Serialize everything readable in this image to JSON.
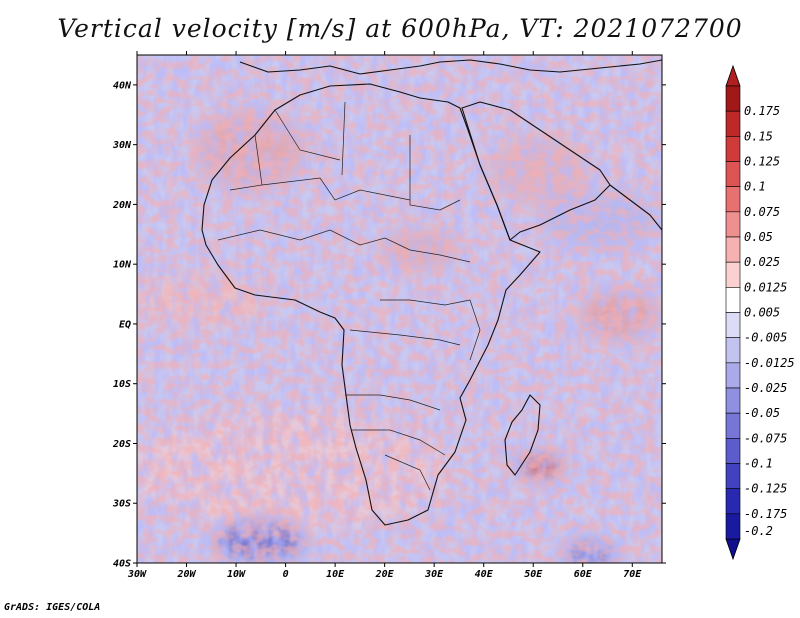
{
  "title": "Vertical velocity [m/s] at 600hPa, VT: 2021072700",
  "credit": "GrADS: IGES/COLA",
  "map": {
    "lon_range": [
      -30,
      76
    ],
    "lat_range": [
      -40,
      45
    ],
    "lat_labels": [
      "40N",
      "30N",
      "20N",
      "10N",
      "EQ",
      "10S",
      "20S",
      "30S",
      "40S"
    ],
    "lat_values": [
      40,
      30,
      20,
      10,
      0,
      -10,
      -20,
      -30,
      -40
    ],
    "lon_labels": [
      "30W",
      "20W",
      "10W",
      "0",
      "10E",
      "20E",
      "30E",
      "40E",
      "50E",
      "60E",
      "70E"
    ],
    "lon_values": [
      -30,
      -20,
      -10,
      0,
      10,
      20,
      30,
      40,
      50,
      60,
      70
    ]
  },
  "colorbar": {
    "labels": [
      "0.175",
      "0.15",
      "0.125",
      "0.1",
      "0.075",
      "0.05",
      "0.025",
      "0.0125",
      "0.005",
      "-0.005",
      "-0.0125",
      "-0.025",
      "-0.05",
      "-0.075",
      "-0.1",
      "-0.125",
      "-0.175",
      "-0.2"
    ],
    "colors": [
      "#a01818",
      "#bd2828",
      "#cf3a3a",
      "#dd5454",
      "#e77171",
      "#ef9090",
      "#f6b2b2",
      "#fad0d0",
      "#ffffff",
      "#dcdcf6",
      "#c3c3f0",
      "#aaaaea",
      "#9090e0",
      "#7676d6",
      "#5c5ccc",
      "#4242bf",
      "#2828b0",
      "#1a1aa0"
    ],
    "top_color": "#b02020",
    "bottom_color": "#10108f"
  }
}
